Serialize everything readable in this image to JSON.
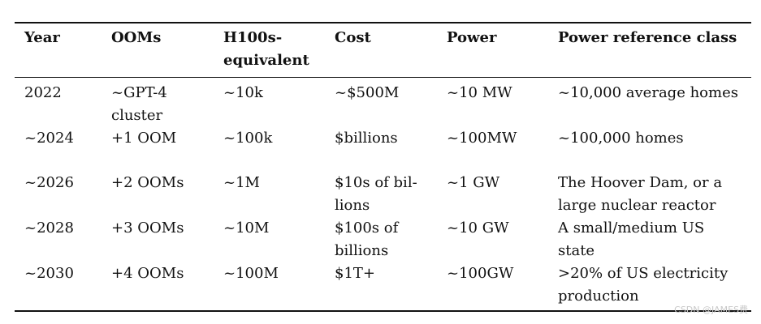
{
  "table": {
    "headers": [
      [
        "Year"
      ],
      [
        "OOMs"
      ],
      [
        "H100s-",
        "equivalent"
      ],
      [
        "Cost"
      ],
      [
        "Power"
      ],
      [
        "Power reference class"
      ]
    ],
    "rows": [
      [
        [
          "2022"
        ],
        [
          "~GPT-4",
          "cluster"
        ],
        [
          "~10k"
        ],
        [
          "~$500M"
        ],
        [
          "~10 MW"
        ],
        [
          "~10,000 average homes"
        ]
      ],
      [
        [
          "~2024"
        ],
        [
          "+1 OOM"
        ],
        [
          "~100k"
        ],
        [
          "$billions"
        ],
        [
          "~100MW"
        ],
        [
          "~100,000 homes"
        ]
      ],
      [
        [
          "~2026"
        ],
        [
          "+2 OOMs"
        ],
        [
          "~1M"
        ],
        [
          "$10s of bil-",
          "lions"
        ],
        [
          "~1 GW"
        ],
        [
          "The Hoover Dam, or a",
          "large nuclear reactor"
        ]
      ],
      [
        [
          "~2028"
        ],
        [
          "+3 OOMs"
        ],
        [
          "~10M"
        ],
        [
          "$100s of",
          "billions"
        ],
        [
          "~10 GW"
        ],
        [
          "A small/medium US",
          "state"
        ]
      ],
      [
        [
          "~2030"
        ],
        [
          "+4 OOMs"
        ],
        [
          "~100M"
        ],
        [
          "$1T+"
        ],
        [
          "~100GW"
        ],
        [
          ">20% of US electricity",
          "production"
        ]
      ]
    ]
  },
  "watermark": "CSDN @JAMES费"
}
